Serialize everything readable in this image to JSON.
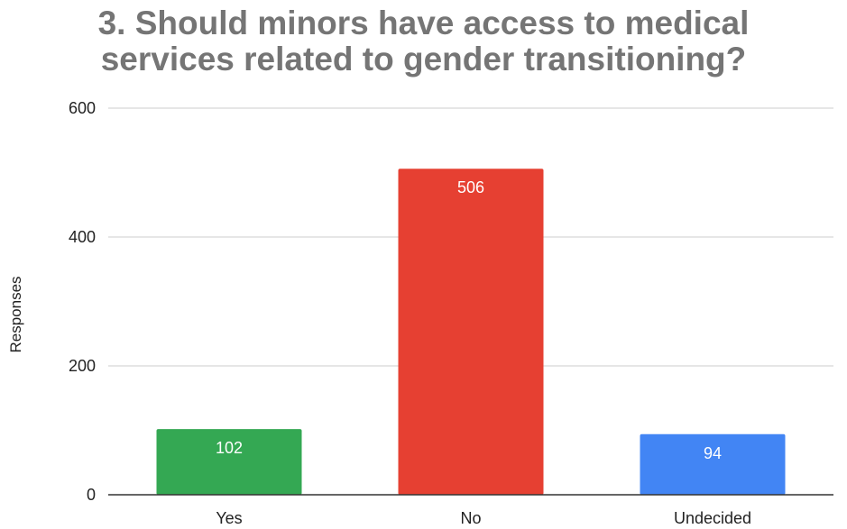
{
  "chart_data": {
    "type": "bar",
    "title_lines": [
      "3. Should minors have access to medical",
      "services related to gender transitioning?"
    ],
    "xlabel": "",
    "ylabel": "Responses",
    "ylim": [
      0,
      600
    ],
    "yticks": [
      0,
      200,
      400,
      600
    ],
    "grid": true,
    "categories": [
      "Yes",
      "No",
      "Undecided"
    ],
    "values": [
      102,
      506,
      94
    ],
    "colors": [
      "#34a853",
      "#e64032",
      "#4285f4"
    ],
    "data_labels": true
  }
}
